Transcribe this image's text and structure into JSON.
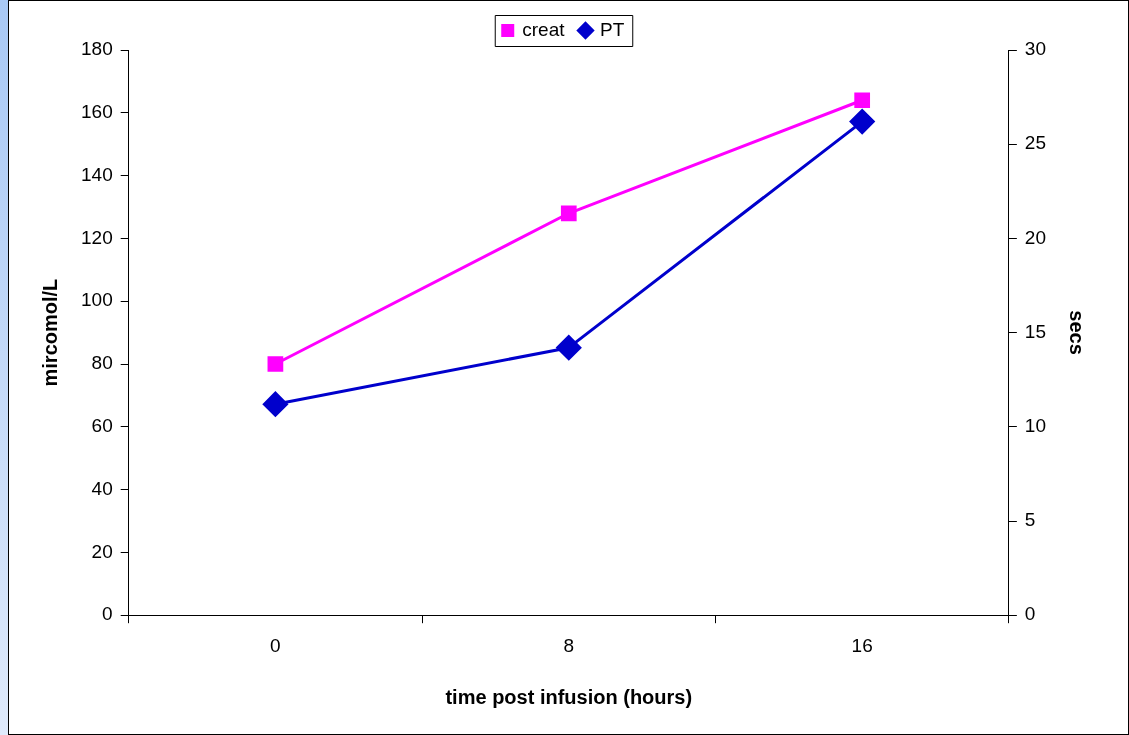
{
  "chart_data": {
    "type": "line",
    "xlabel": "time post infusion (hours)",
    "ylabel": "mircomol/L",
    "y2label": "secs",
    "categories": [
      "0",
      "8",
      "16"
    ],
    "series": [
      {
        "name": "creat",
        "color": "#ff00ff",
        "values": [
          80,
          128,
          164
        ],
        "marker": "square"
      },
      {
        "name": "PT",
        "color": "#0000cc",
        "values": [
          11.2,
          14.2,
          26.2
        ],
        "marker": "diamond",
        "axis": "y2"
      }
    ],
    "ylim": [
      0,
      180
    ],
    "yticks": [
      0,
      20,
      40,
      60,
      80,
      100,
      120,
      140,
      160,
      180
    ],
    "y2lim": [
      0,
      30
    ],
    "y2ticks": [
      0,
      5,
      10,
      15,
      20,
      25,
      30
    ],
    "grid": false,
    "legend": "top",
    "line_style": "solid"
  }
}
